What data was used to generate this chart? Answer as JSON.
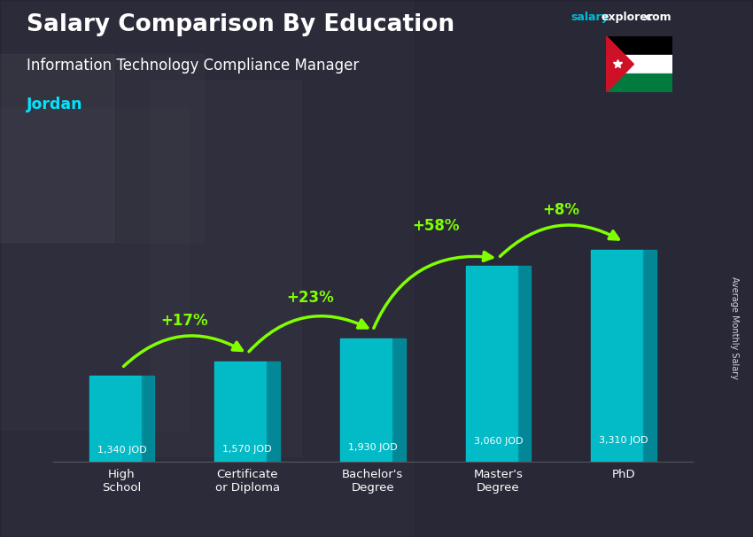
{
  "title": "Salary Comparison By Education",
  "subtitle": "Information Technology Compliance Manager",
  "country": "Jordan",
  "ylabel": "Average Monthly Salary",
  "categories": [
    "High\nSchool",
    "Certificate\nor Diploma",
    "Bachelor's\nDegree",
    "Master's\nDegree",
    "PhD"
  ],
  "values": [
    1340,
    1570,
    1930,
    3060,
    3310
  ],
  "labels": [
    "1,340 JOD",
    "1,570 JOD",
    "1,930 JOD",
    "3,060 JOD",
    "3,310 JOD"
  ],
  "pct_labels": [
    "+17%",
    "+23%",
    "+58%",
    "+8%"
  ],
  "bar_color_main": "#00c8d4",
  "bar_color_dark": "#0090a0",
  "pct_color": "#80ff00",
  "title_color": "#ffffff",
  "subtitle_color": "#ffffff",
  "country_color": "#00e5ff",
  "bg_color": "#3a3a4a",
  "site_salary_color": "#00bcd4",
  "site_explorer_color": "#ffffff",
  "ylim_max": 4200,
  "figw": 8.5,
  "figh": 6.06
}
